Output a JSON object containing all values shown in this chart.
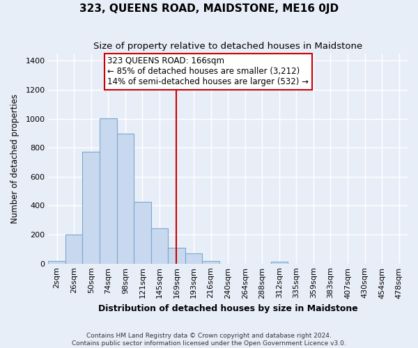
{
  "title": "323, QUEENS ROAD, MAIDSTONE, ME16 0JD",
  "subtitle": "Size of property relative to detached houses in Maidstone",
  "xlabel": "Distribution of detached houses by size in Maidstone",
  "ylabel": "Number of detached properties",
  "bar_labels": [
    "2sqm",
    "26sqm",
    "50sqm",
    "74sqm",
    "98sqm",
    "121sqm",
    "145sqm",
    "169sqm",
    "193sqm",
    "216sqm",
    "240sqm",
    "264sqm",
    "288sqm",
    "312sqm",
    "335sqm",
    "359sqm",
    "383sqm",
    "407sqm",
    "430sqm",
    "454sqm",
    "478sqm"
  ],
  "bar_values": [
    20,
    200,
    770,
    1005,
    895,
    425,
    245,
    110,
    70,
    20,
    0,
    0,
    0,
    15,
    0,
    0,
    0,
    0,
    0,
    0,
    0
  ],
  "bar_color": "#c8d8ee",
  "bar_edge_color": "#7aa8cc",
  "vline_index": 7,
  "vline_color": "#cc0000",
  "ylim": [
    0,
    1450
  ],
  "yticks": [
    0,
    200,
    400,
    600,
    800,
    1000,
    1200,
    1400
  ],
  "annotation_title": "323 QUEENS ROAD: 166sqm",
  "annotation_line1": "← 85% of detached houses are smaller (3,212)",
  "annotation_line2": "14% of semi-detached houses are larger (532) →",
  "annotation_box_color": "#ffffff",
  "annotation_box_edge": "#cc0000",
  "footer_line1": "Contains HM Land Registry data © Crown copyright and database right 2024.",
  "footer_line2": "Contains public sector information licensed under the Open Government Licence v3.0.",
  "bg_color": "#e8eef8",
  "grid_color": "#ffffff",
  "title_fontsize": 11,
  "subtitle_fontsize": 9.5,
  "xlabel_fontsize": 9,
  "ylabel_fontsize": 8.5,
  "tick_fontsize": 8,
  "ann_fontsize": 8.5
}
